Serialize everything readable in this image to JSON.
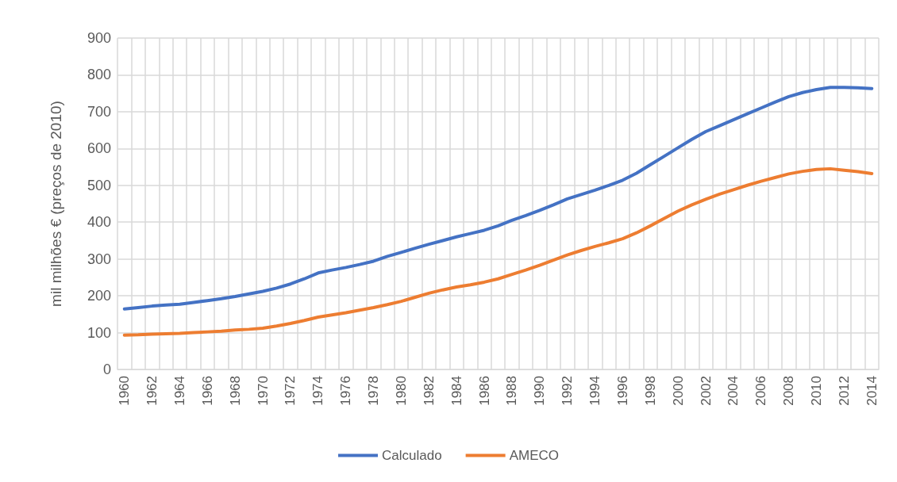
{
  "chart_data": {
    "type": "line",
    "ylabel": "mil milhões € (preços de 2010)",
    "categories": [
      "1960",
      null,
      "1962",
      null,
      "1964",
      null,
      "1966",
      null,
      "1968",
      null,
      "1970",
      null,
      "1972",
      null,
      "1974",
      null,
      "1976",
      null,
      "1978",
      null,
      "1980",
      null,
      "1982",
      null,
      "1984",
      null,
      "1986",
      null,
      "1988",
      null,
      "1990",
      null,
      "1992",
      null,
      "1994",
      null,
      "1996",
      null,
      "1998",
      null,
      "2000",
      null,
      "2002",
      null,
      "2004",
      null,
      "2006",
      null,
      "2008",
      null,
      "2010",
      null,
      "2012",
      null,
      "2014"
    ],
    "series": [
      {
        "name": "Calculado",
        "color": "#4472c4",
        "values": [
          164,
          168,
          172,
          175,
          177,
          182,
          187,
          192,
          198,
          205,
          212,
          221,
          232,
          246,
          262,
          270,
          277,
          285,
          294,
          307,
          318,
          329,
          340,
          350,
          360,
          369,
          378,
          390,
          405,
          418,
          432,
          447,
          463,
          475,
          487,
          500,
          514,
          533,
          556,
          579,
          602,
          625,
          646,
          662,
          678,
          694,
          710,
          726,
          741,
          752,
          760,
          766,
          766,
          765,
          763
        ]
      },
      {
        "name": "AMECO",
        "color": "#ed7d31",
        "values": [
          93,
          94,
          96,
          97,
          98,
          100,
          102,
          104,
          107,
          109,
          112,
          118,
          125,
          133,
          142,
          148,
          154,
          161,
          168,
          176,
          185,
          196,
          207,
          216,
          224,
          230,
          237,
          246,
          258,
          270,
          283,
          297,
          311,
          323,
          334,
          344,
          355,
          371,
          390,
          410,
          430,
          447,
          462,
          476,
          488,
          500,
          511,
          521,
          531,
          538,
          543,
          545,
          541,
          537,
          532
        ]
      }
    ],
    "ylim": [
      0,
      900
    ],
    "yticks": [
      0,
      100,
      200,
      300,
      400,
      500,
      600,
      700,
      800,
      900
    ],
    "grid": true,
    "legend": "bottom",
    "marker": "none",
    "line_style": "solid"
  }
}
